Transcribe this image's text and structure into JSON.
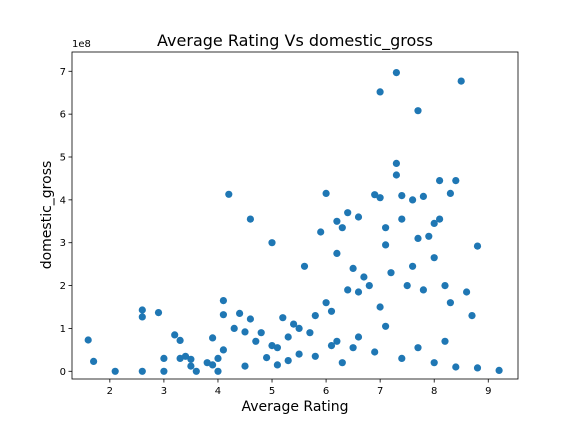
{
  "chart_data": {
    "type": "scatter",
    "title": "Average Rating  Vs domestic_gross",
    "xlabel": "Average Rating",
    "ylabel": "domestic_gross",
    "y_offset_label": "1e8",
    "xlim": [
      1.3,
      9.55
    ],
    "ylim": [
      -0.18,
      7.45
    ],
    "x_ticks": [
      2,
      3,
      4,
      5,
      6,
      7,
      8,
      9
    ],
    "y_ticks": [
      0,
      1,
      2,
      3,
      4,
      5,
      6,
      7
    ],
    "grid": false,
    "marker_color": "#1f77b4",
    "points": {
      "x": [
        1.6,
        1.7,
        2.1,
        2.6,
        2.6,
        2.6,
        2.9,
        3.0,
        3.0,
        3.2,
        3.3,
        3.3,
        3.4,
        3.5,
        3.5,
        3.6,
        3.8,
        3.9,
        3.9,
        4.0,
        4.0,
        4.1,
        4.1,
        4.1,
        4.2,
        4.3,
        4.4,
        4.5,
        4.5,
        4.6,
        4.6,
        4.7,
        4.8,
        4.9,
        5.0,
        5.0,
        5.1,
        5.2,
        5.3,
        5.4,
        5.5,
        5.6,
        5.7,
        5.8,
        5.9,
        6.0,
        6.0,
        6.1,
        6.2,
        6.2,
        6.2,
        6.3,
        6.4,
        6.4,
        6.5,
        6.5,
        6.6,
        6.6,
        6.7,
        6.8,
        6.9,
        7.0,
        7.0,
        7.0,
        7.1,
        7.1,
        7.2,
        7.3,
        7.3,
        7.3,
        7.4,
        7.4,
        7.5,
        7.6,
        7.6,
        7.7,
        7.7,
        7.8,
        7.8,
        7.9,
        8.0,
        8.0,
        8.1,
        8.1,
        8.2,
        8.3,
        8.3,
        8.4,
        8.5,
        8.6,
        8.7,
        8.8,
        8.8,
        9.2,
        5.1,
        5.3,
        5.5,
        5.8,
        6.1,
        6.3,
        6.6,
        6.9,
        7.1,
        7.4,
        7.7,
        8.0,
        8.2,
        8.4
      ],
      "y": [
        0.73,
        0.23,
        0.0,
        1.43,
        1.27,
        0.0,
        1.37,
        0.3,
        0.0,
        0.85,
        0.72,
        0.3,
        0.35,
        0.28,
        0.12,
        0.0,
        0.2,
        0.15,
        0.78,
        0.0,
        0.3,
        1.65,
        1.32,
        0.5,
        4.13,
        1.0,
        1.35,
        0.92,
        0.12,
        3.55,
        1.22,
        0.7,
        0.9,
        0.32,
        3.0,
        0.6,
        0.55,
        1.25,
        0.8,
        1.1,
        1.0,
        2.45,
        0.9,
        1.3,
        3.25,
        4.15,
        1.6,
        1.4,
        2.75,
        0.7,
        3.5,
        3.35,
        3.7,
        1.9,
        2.4,
        0.55,
        3.6,
        1.85,
        2.2,
        2.0,
        4.12,
        6.52,
        4.05,
        1.5,
        2.95,
        3.35,
        2.3,
        6.97,
        4.85,
        4.58,
        4.1,
        3.55,
        2.0,
        4.0,
        2.45,
        6.08,
        3.1,
        4.08,
        1.9,
        3.15,
        3.45,
        2.65,
        4.45,
        3.55,
        2.0,
        4.15,
        1.6,
        4.45,
        6.77,
        1.85,
        1.3,
        2.92,
        0.08,
        0.02,
        0.15,
        0.25,
        0.4,
        0.35,
        0.6,
        0.2,
        0.8,
        0.45,
        1.05,
        0.3,
        0.55,
        0.2,
        0.7,
        0.1
      ]
    }
  }
}
